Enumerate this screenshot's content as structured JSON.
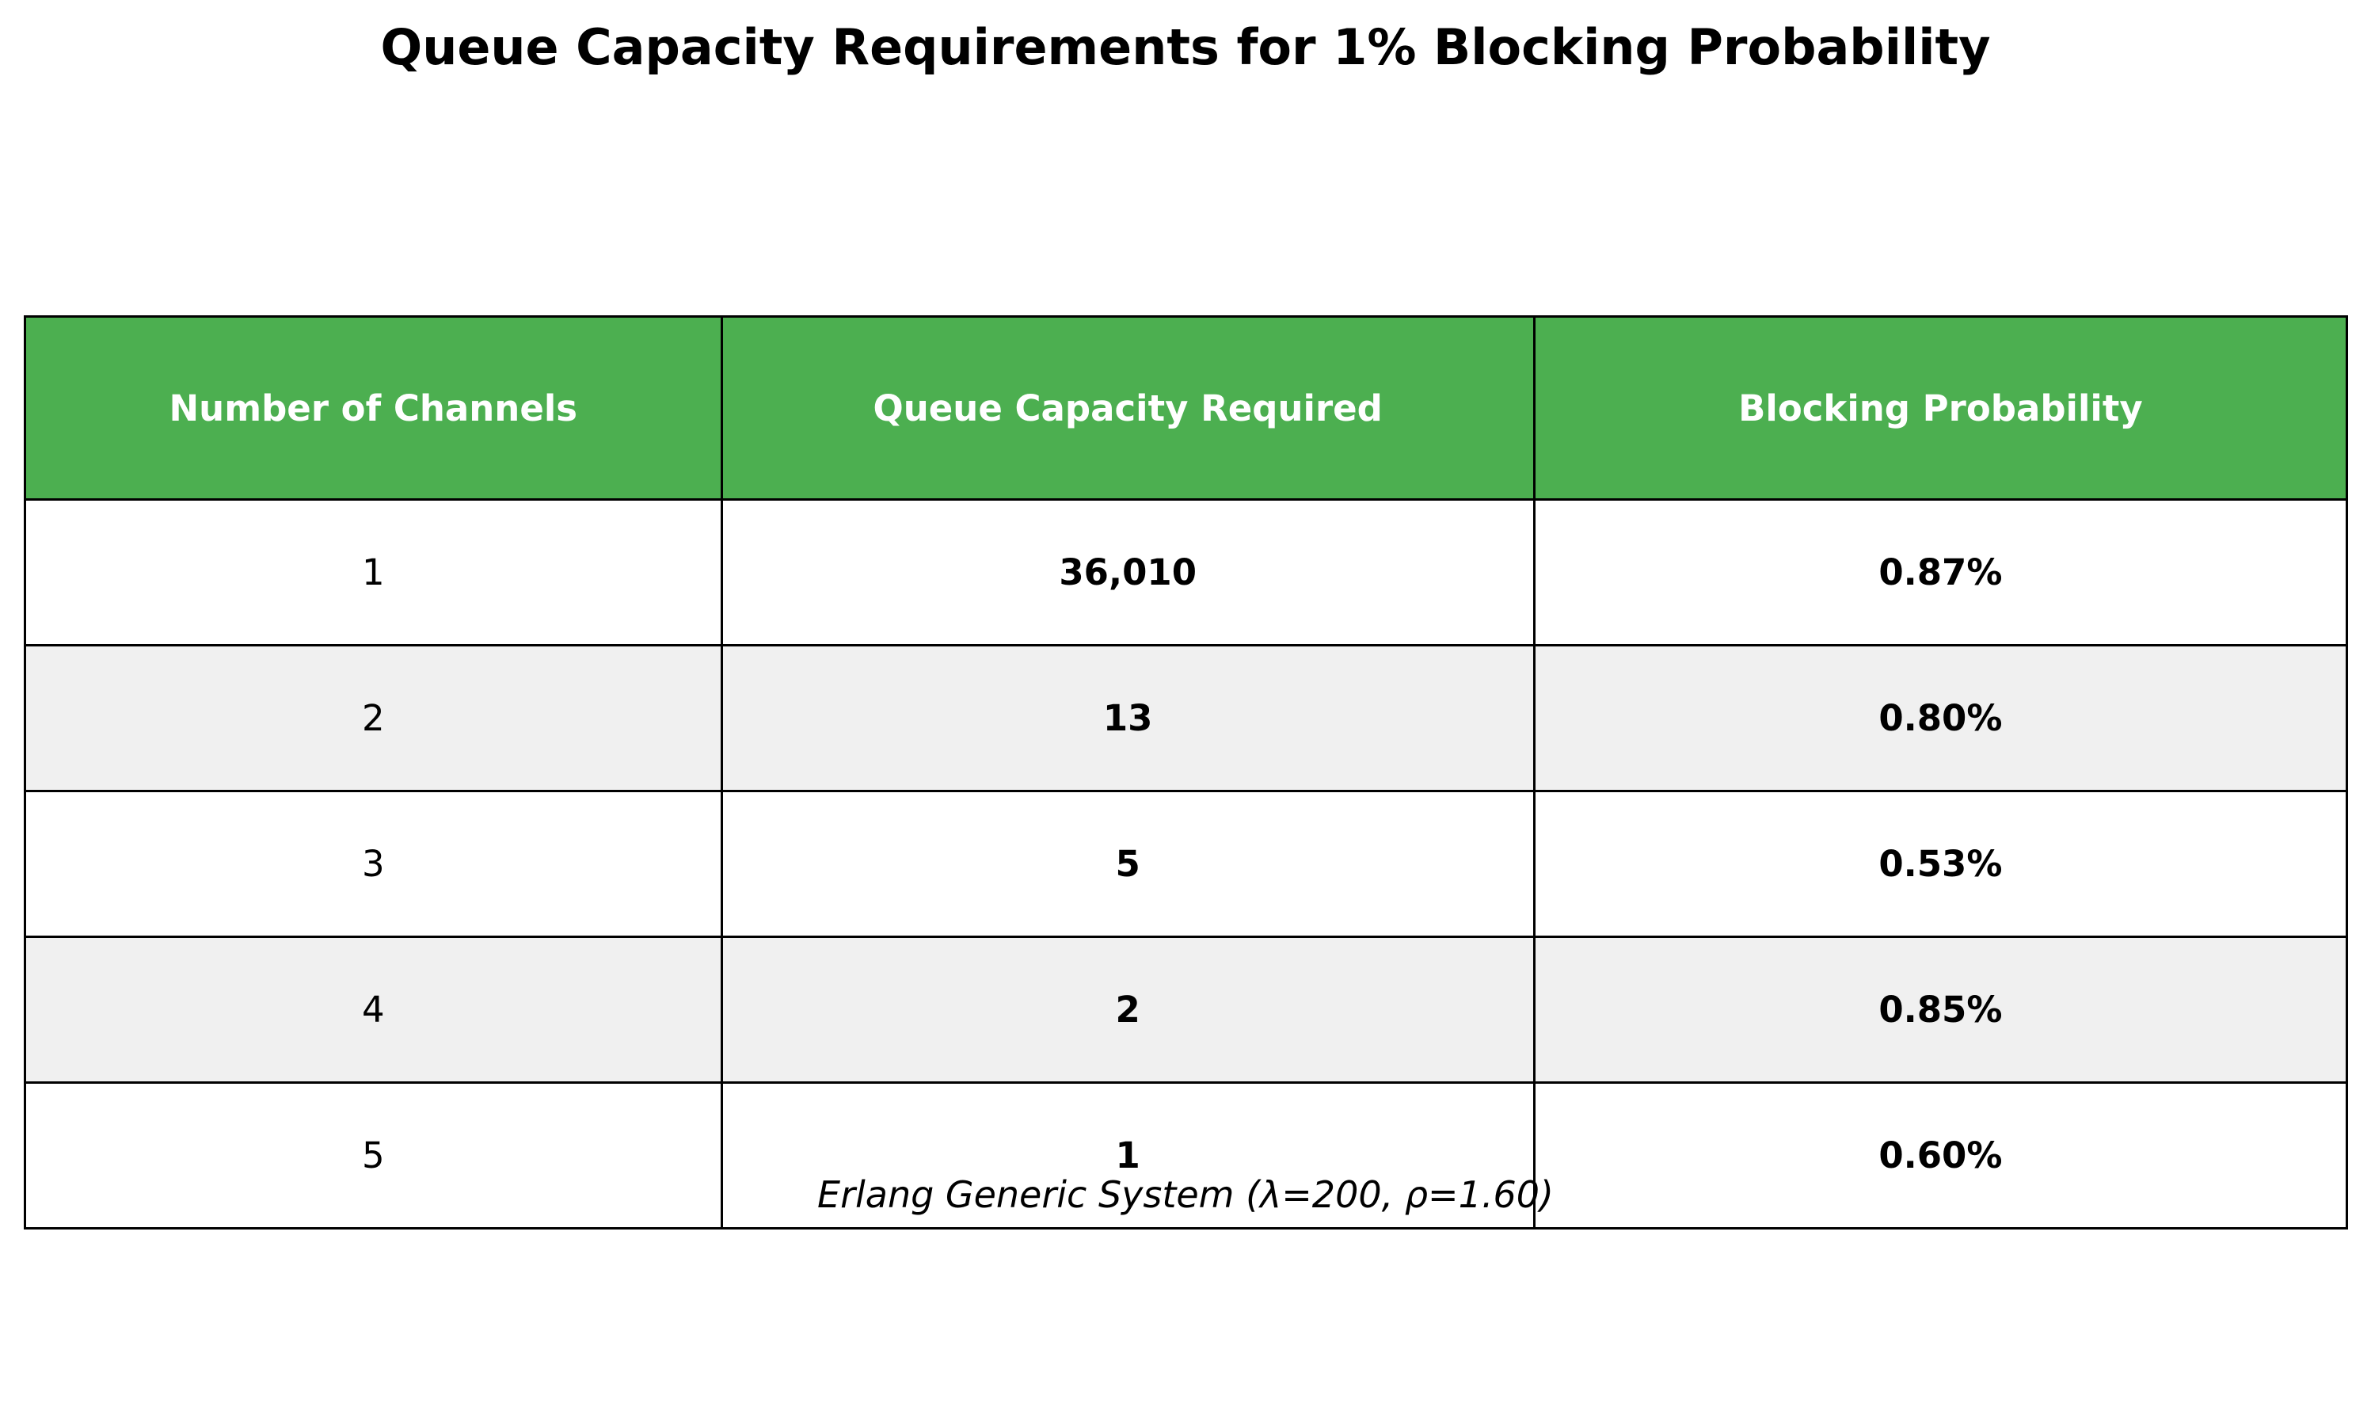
{
  "chart_data": {
    "type": "table",
    "title": "Queue Capacity Requirements for 1% Blocking Probability",
    "columns": [
      "Number of Channels",
      "Queue Capacity Required",
      "Blocking Probability"
    ],
    "rows": [
      [
        "1",
        "36,010",
        "0.87%"
      ],
      [
        "2",
        "13",
        "0.80%"
      ],
      [
        "3",
        "5",
        "0.53%"
      ],
      [
        "4",
        "2",
        "0.85%"
      ],
      [
        "5",
        "1",
        "0.60%"
      ]
    ],
    "annotation": "Erlang Generic System (λ=200, ρ=1.60)"
  },
  "colors": {
    "header_bg": "#4caf50",
    "header_text": "#ffffff",
    "row_odd_bg": "#ffffff",
    "row_even_bg": "#f0f0f0",
    "grid_line": "#000000"
  }
}
